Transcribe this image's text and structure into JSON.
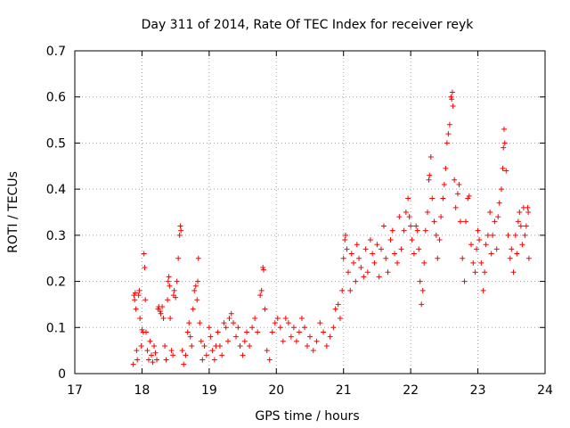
{
  "chart_data": {
    "type": "scatter",
    "title": "Day 311 of 2014, Rate Of TEC Index for receiver reyk",
    "xlabel": "GPS time / hours",
    "ylabel": "ROTI / TECUs",
    "xlim": [
      17,
      24
    ],
    "ylim": [
      0,
      0.7
    ],
    "x_ticks": [
      "17",
      "18",
      "19",
      "20",
      "21",
      "22",
      "23",
      "24"
    ],
    "y_ticks": [
      "0",
      "0.1",
      "0.2",
      "0.3",
      "0.4",
      "0.5",
      "0.6",
      "0.7"
    ],
    "grid": true,
    "marker": "+",
    "series": [
      {
        "name": "reyk",
        "color": "#ff0000",
        "points": [
          [
            17.87,
            0.02
          ],
          [
            17.88,
            0.17
          ],
          [
            17.89,
            0.16
          ],
          [
            17.9,
            0.175
          ],
          [
            17.91,
            0.14
          ],
          [
            17.92,
            0.05
          ],
          [
            17.93,
            0.03
          ],
          [
            17.95,
            0.17
          ],
          [
            17.96,
            0.18
          ],
          [
            17.97,
            0.12
          ],
          [
            17.99,
            0.06
          ],
          [
            18.0,
            0.095
          ],
          [
            18.02,
            0.09
          ],
          [
            18.03,
            0.26
          ],
          [
            18.04,
            0.23
          ],
          [
            18.05,
            0.16
          ],
          [
            18.06,
            0.09
          ],
          [
            18.08,
            0.05
          ],
          [
            18.1,
            0.03
          ],
          [
            18.12,
            0.07
          ],
          [
            18.14,
            0.04
          ],
          [
            18.16,
            0.025
          ],
          [
            18.18,
            0.06
          ],
          [
            18.2,
            0.045
          ],
          [
            18.22,
            0.03
          ],
          [
            18.24,
            0.14
          ],
          [
            18.25,
            0.145
          ],
          [
            18.27,
            0.135
          ],
          [
            18.28,
            0.13
          ],
          [
            18.3,
            0.145
          ],
          [
            18.32,
            0.12
          ],
          [
            18.34,
            0.06
          ],
          [
            18.36,
            0.03
          ],
          [
            18.38,
            0.16
          ],
          [
            18.39,
            0.2
          ],
          [
            18.4,
            0.21
          ],
          [
            18.41,
            0.19
          ],
          [
            18.42,
            0.12
          ],
          [
            18.44,
            0.05
          ],
          [
            18.46,
            0.04
          ],
          [
            18.47,
            0.17
          ],
          [
            18.48,
            0.18
          ],
          [
            18.5,
            0.165
          ],
          [
            18.52,
            0.2
          ],
          [
            18.54,
            0.25
          ],
          [
            18.56,
            0.3
          ],
          [
            18.57,
            0.32
          ],
          [
            18.58,
            0.31
          ],
          [
            18.6,
            0.05
          ],
          [
            18.62,
            0.02
          ],
          [
            18.65,
            0.04
          ],
          [
            18.68,
            0.09
          ],
          [
            18.7,
            0.11
          ],
          [
            18.72,
            0.08
          ],
          [
            18.74,
            0.06
          ],
          [
            18.76,
            0.14
          ],
          [
            18.78,
            0.18
          ],
          [
            18.8,
            0.19
          ],
          [
            18.82,
            0.16
          ],
          [
            18.83,
            0.2
          ],
          [
            18.84,
            0.25
          ],
          [
            18.86,
            0.11
          ],
          [
            18.88,
            0.07
          ],
          [
            18.9,
            0.03
          ],
          [
            18.93,
            0.06
          ],
          [
            18.96,
            0.04
          ],
          [
            19.0,
            0.1
          ],
          [
            19.02,
            0.08
          ],
          [
            19.05,
            0.05
          ],
          [
            19.08,
            0.03
          ],
          [
            19.1,
            0.06
          ],
          [
            19.13,
            0.09
          ],
          [
            19.16,
            0.06
          ],
          [
            19.19,
            0.04
          ],
          [
            19.22,
            0.11
          ],
          [
            19.25,
            0.1
          ],
          [
            19.28,
            0.07
          ],
          [
            19.3,
            0.12
          ],
          [
            19.33,
            0.13
          ],
          [
            19.36,
            0.11
          ],
          [
            19.4,
            0.08
          ],
          [
            19.43,
            0.1
          ],
          [
            19.46,
            0.06
          ],
          [
            19.5,
            0.04
          ],
          [
            19.53,
            0.07
          ],
          [
            19.56,
            0.09
          ],
          [
            19.6,
            0.06
          ],
          [
            19.64,
            0.1
          ],
          [
            19.68,
            0.12
          ],
          [
            19.72,
            0.09
          ],
          [
            19.76,
            0.17
          ],
          [
            19.78,
            0.18
          ],
          [
            19.8,
            0.23
          ],
          [
            19.81,
            0.225
          ],
          [
            19.83,
            0.14
          ],
          [
            19.86,
            0.05
          ],
          [
            19.9,
            0.03
          ],
          [
            19.94,
            0.09
          ],
          [
            19.98,
            0.11
          ],
          [
            20.02,
            0.12
          ],
          [
            20.06,
            0.1
          ],
          [
            20.1,
            0.07
          ],
          [
            20.14,
            0.12
          ],
          [
            20.18,
            0.11
          ],
          [
            20.22,
            0.08
          ],
          [
            20.26,
            0.1
          ],
          [
            20.3,
            0.07
          ],
          [
            20.34,
            0.09
          ],
          [
            20.38,
            0.12
          ],
          [
            20.42,
            0.1
          ],
          [
            20.46,
            0.06
          ],
          [
            20.5,
            0.08
          ],
          [
            20.55,
            0.05
          ],
          [
            20.6,
            0.07
          ],
          [
            20.65,
            0.11
          ],
          [
            20.7,
            0.09
          ],
          [
            20.75,
            0.06
          ],
          [
            20.8,
            0.08
          ],
          [
            20.85,
            0.1
          ],
          [
            20.88,
            0.14
          ],
          [
            20.92,
            0.15
          ],
          [
            20.95,
            0.12
          ],
          [
            20.98,
            0.18
          ],
          [
            21.0,
            0.25
          ],
          [
            21.02,
            0.29
          ],
          [
            21.03,
            0.3
          ],
          [
            21.05,
            0.27
          ],
          [
            21.07,
            0.22
          ],
          [
            21.1,
            0.18
          ],
          [
            21.12,
            0.26
          ],
          [
            21.15,
            0.24
          ],
          [
            21.18,
            0.2
          ],
          [
            21.2,
            0.28
          ],
          [
            21.23,
            0.25
          ],
          [
            21.26,
            0.23
          ],
          [
            21.3,
            0.21
          ],
          [
            21.33,
            0.27
          ],
          [
            21.36,
            0.22
          ],
          [
            21.4,
            0.29
          ],
          [
            21.43,
            0.26
          ],
          [
            21.46,
            0.24
          ],
          [
            21.5,
            0.28
          ],
          [
            21.53,
            0.21
          ],
          [
            21.56,
            0.27
          ],
          [
            21.6,
            0.32
          ],
          [
            21.63,
            0.25
          ],
          [
            21.66,
            0.22
          ],
          [
            21.7,
            0.29
          ],
          [
            21.73,
            0.31
          ],
          [
            21.76,
            0.26
          ],
          [
            21.8,
            0.24
          ],
          [
            21.83,
            0.34
          ],
          [
            21.86,
            0.27
          ],
          [
            21.9,
            0.31
          ],
          [
            21.93,
            0.35
          ],
          [
            21.96,
            0.38
          ],
          [
            21.98,
            0.34
          ],
          [
            22.0,
            0.32
          ],
          [
            22.02,
            0.29
          ],
          [
            22.05,
            0.26
          ],
          [
            22.08,
            0.32
          ],
          [
            22.1,
            0.31
          ],
          [
            22.12,
            0.27
          ],
          [
            22.14,
            0.2
          ],
          [
            22.16,
            0.15
          ],
          [
            22.18,
            0.18
          ],
          [
            22.2,
            0.24
          ],
          [
            22.22,
            0.31
          ],
          [
            22.25,
            0.35
          ],
          [
            22.27,
            0.42
          ],
          [
            22.28,
            0.43
          ],
          [
            22.3,
            0.47
          ],
          [
            22.32,
            0.38
          ],
          [
            22.35,
            0.33
          ],
          [
            22.38,
            0.3
          ],
          [
            22.4,
            0.25
          ],
          [
            22.43,
            0.29
          ],
          [
            22.45,
            0.34
          ],
          [
            22.48,
            0.38
          ],
          [
            22.5,
            0.41
          ],
          [
            22.52,
            0.445
          ],
          [
            22.54,
            0.5
          ],
          [
            22.56,
            0.52
          ],
          [
            22.58,
            0.54
          ],
          [
            22.6,
            0.6
          ],
          [
            22.61,
            0.595
          ],
          [
            22.62,
            0.61
          ],
          [
            22.63,
            0.58
          ],
          [
            22.65,
            0.42
          ],
          [
            22.67,
            0.36
          ],
          [
            22.7,
            0.39
          ],
          [
            22.72,
            0.41
          ],
          [
            22.74,
            0.33
          ],
          [
            22.77,
            0.25
          ],
          [
            22.8,
            0.2
          ],
          [
            22.82,
            0.33
          ],
          [
            22.85,
            0.38
          ],
          [
            22.87,
            0.385
          ],
          [
            22.9,
            0.28
          ],
          [
            22.93,
            0.24
          ],
          [
            22.96,
            0.22
          ],
          [
            22.98,
            0.27
          ],
          [
            23.0,
            0.31
          ],
          [
            23.02,
            0.29
          ],
          [
            23.05,
            0.24
          ],
          [
            23.08,
            0.18
          ],
          [
            23.1,
            0.22
          ],
          [
            23.12,
            0.28
          ],
          [
            23.15,
            0.3
          ],
          [
            23.18,
            0.35
          ],
          [
            23.2,
            0.26
          ],
          [
            23.22,
            0.3
          ],
          [
            23.25,
            0.33
          ],
          [
            23.28,
            0.27
          ],
          [
            23.3,
            0.34
          ],
          [
            23.32,
            0.37
          ],
          [
            23.35,
            0.4
          ],
          [
            23.37,
            0.445
          ],
          [
            23.38,
            0.49
          ],
          [
            23.39,
            0.53
          ],
          [
            23.4,
            0.5
          ],
          [
            23.42,
            0.44
          ],
          [
            23.45,
            0.3
          ],
          [
            23.48,
            0.25
          ],
          [
            23.5,
            0.27
          ],
          [
            23.53,
            0.22
          ],
          [
            23.56,
            0.3
          ],
          [
            23.58,
            0.26
          ],
          [
            23.6,
            0.33
          ],
          [
            23.62,
            0.35
          ],
          [
            23.64,
            0.32
          ],
          [
            23.66,
            0.28
          ],
          [
            23.68,
            0.36
          ],
          [
            23.7,
            0.3
          ],
          [
            23.72,
            0.32
          ],
          [
            23.74,
            0.36
          ],
          [
            23.75,
            0.35
          ],
          [
            23.76,
            0.25
          ]
        ]
      }
    ]
  }
}
